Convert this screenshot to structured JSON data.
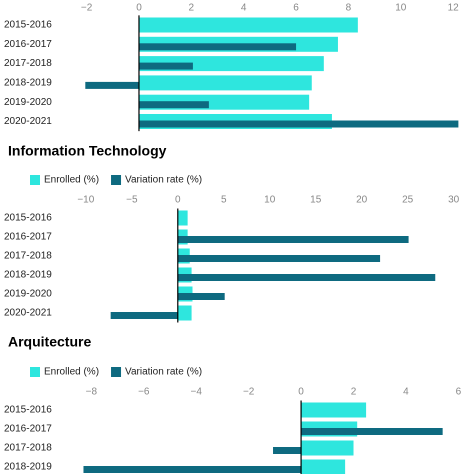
{
  "chart_data": [
    {
      "type": "bar",
      "orientation": "horizontal",
      "categories": [
        "2015-2016",
        "2016-2017",
        "2017-2018",
        "2018-2019",
        "2019-2020",
        "2020-2021"
      ],
      "series": [
        {
          "color": "#2ee6de",
          "values": [
            8.36,
            7.6,
            7.06,
            6.6,
            6.5,
            7.37
          ]
        },
        {
          "color": "#0e6a80",
          "values": [
            null,
            6.0,
            2.06,
            -2.05,
            2.67,
            12.2
          ]
        }
      ],
      "xlim": [
        -2.1,
        12.3
      ],
      "xticks": [
        {
          "value": -2,
          "label": "−2"
        },
        0,
        2,
        4,
        6,
        8,
        10,
        12
      ]
    },
    {
      "type": "bar",
      "orientation": "horizontal",
      "title": "Information Technology",
      "categories": [
        "2015-2016",
        "2016-2017",
        "2017-2018",
        "2018-2019",
        "2019-2020",
        "2020-2021"
      ],
      "series": [
        {
          "name": "Enrolled (%)",
          "color": "#2ee6de",
          "values": [
            1.07,
            1.07,
            1.3,
            1.5,
            1.6,
            1.5
          ]
        },
        {
          "name": "Variation rate (%)",
          "color": "#0e6a80",
          "values": [
            null,
            25.1,
            22.0,
            28.0,
            5.1,
            -7.3
          ]
        }
      ],
      "xlim": [
        -10.2,
        30.8
      ],
      "xticks": [
        {
          "value": -10,
          "label": "−10"
        },
        {
          "value": -5,
          "label": "−5"
        },
        0,
        5,
        10,
        15,
        20,
        25,
        30
      ]
    },
    {
      "type": "bar",
      "orientation": "horizontal",
      "title": "Arquitecture",
      "categories": [
        "2015-2016",
        "2016-2017",
        "2017-2018",
        "2018-2019"
      ],
      "series": [
        {
          "name": "Enrolled (%)",
          "color": "#2ee6de",
          "values": [
            2.48,
            2.14,
            2.0,
            1.68
          ]
        },
        {
          "name": "Variation rate (%)",
          "color": "#0e6a80",
          "values": [
            null,
            5.4,
            -1.07,
            -8.3
          ]
        }
      ],
      "xlim": [
        -8.28,
        6.1
      ],
      "xticks": [
        {
          "value": -8,
          "label": "−8"
        },
        {
          "value": -6,
          "label": "−6"
        },
        {
          "value": -4,
          "label": "−4"
        },
        {
          "value": -2,
          "label": "−2"
        },
        0,
        2,
        4,
        6
      ]
    }
  ]
}
